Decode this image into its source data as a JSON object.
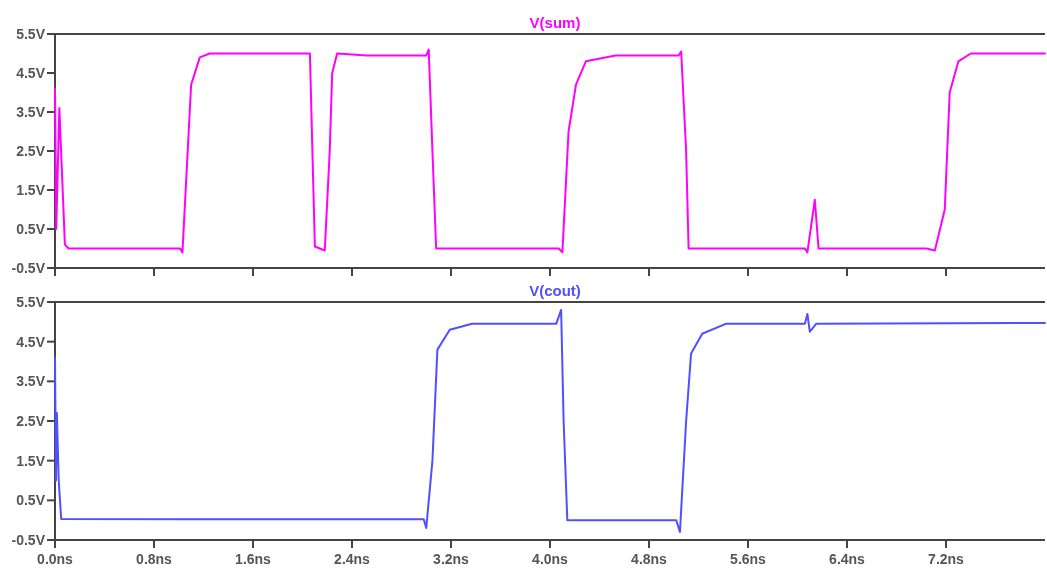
{
  "chart_data": [
    {
      "type": "line",
      "legend": "top",
      "grid": false,
      "tick_labels": "y",
      "marker": "none",
      "line_style": "solid",
      "xlim": [
        0,
        8.0
      ],
      "ylim": [
        -0.5,
        5.5
      ],
      "yticks": [
        {
          "value": -0.5,
          "label": "-0.5V"
        },
        {
          "value": 0.5,
          "label": "0.5V"
        },
        {
          "value": 1.5,
          "label": "1.5V"
        },
        {
          "value": 2.5,
          "label": "2.5V"
        },
        {
          "value": 3.5,
          "label": "3.5V"
        },
        {
          "value": 4.5,
          "label": "4.5V"
        },
        {
          "value": 5.5,
          "label": "5.5V"
        }
      ],
      "xticks": [
        {
          "value": 0,
          "label": null
        },
        {
          "value": 0.8,
          "label": null
        },
        {
          "value": 1.6,
          "label": null
        },
        {
          "value": 2.4,
          "label": null
        },
        {
          "value": 3.2,
          "label": null
        },
        {
          "value": 4.0,
          "label": null
        },
        {
          "value": 4.8,
          "label": null
        },
        {
          "value": 5.6,
          "label": null
        },
        {
          "value": 6.4,
          "label": null
        },
        {
          "value": 7.2,
          "label": null
        }
      ],
      "series": [
        {
          "name": "V(sum)",
          "color": "#ff00ff",
          "x": [
            0,
            0.01,
            0.035,
            0.08,
            0.11,
            1.01,
            1.03,
            1.1,
            1.17,
            1.25,
            2.06,
            2.08,
            2.1,
            2.18,
            2.22,
            2.24,
            2.28,
            2.52,
            3.0,
            3.02,
            3.05,
            3.08,
            4.07,
            4.1,
            4.15,
            4.21,
            4.29,
            4.53,
            5.04,
            5.06,
            5.1,
            5.12,
            6.06,
            6.08,
            6.14,
            6.17,
            7.04,
            7.11,
            7.19,
            7.23,
            7.3,
            7.4,
            8.0
          ],
          "values": [
            4.1,
            0.5,
            3.6,
            0.1,
            0.0,
            0.0,
            -0.1,
            4.2,
            4.9,
            5.0,
            5.0,
            2.5,
            0.05,
            -0.05,
            2.5,
            4.5,
            5.0,
            4.95,
            4.95,
            5.1,
            2.5,
            0.0,
            0.0,
            -0.1,
            3.0,
            4.2,
            4.8,
            4.95,
            4.95,
            5.05,
            2.5,
            0.0,
            0.0,
            -0.1,
            1.25,
            0.0,
            0.0,
            -0.05,
            1.0,
            4.0,
            4.8,
            5.0,
            5.0
          ]
        }
      ]
    },
    {
      "type": "line",
      "legend": "top",
      "grid": false,
      "marker": "none",
      "line_style": "solid",
      "xlim": [
        0,
        8.0
      ],
      "ylim": [
        -0.5,
        5.5
      ],
      "yticks": [
        {
          "value": -0.5,
          "label": "-0.5V"
        },
        {
          "value": 0.5,
          "label": "0.5V"
        },
        {
          "value": 1.5,
          "label": "1.5V"
        },
        {
          "value": 2.5,
          "label": "2.5V"
        },
        {
          "value": 3.5,
          "label": "3.5V"
        },
        {
          "value": 4.5,
          "label": "4.5V"
        },
        {
          "value": 5.5,
          "label": "5.5V"
        }
      ],
      "xticks": [
        {
          "value": 0,
          "label": "0.0ns"
        },
        {
          "value": 0.8,
          "label": "0.8ns"
        },
        {
          "value": 1.6,
          "label": "1.6ns"
        },
        {
          "value": 2.4,
          "label": "2.4ns"
        },
        {
          "value": 3.2,
          "label": "3.2ns"
        },
        {
          "value": 4.0,
          "label": "4.0ns"
        },
        {
          "value": 4.8,
          "label": "4.8ns"
        },
        {
          "value": 5.6,
          "label": "5.6ns"
        },
        {
          "value": 6.4,
          "label": "6.4ns"
        },
        {
          "value": 7.2,
          "label": "7.2ns"
        }
      ],
      "series": [
        {
          "name": "V(cout)",
          "color": "#5050ff",
          "x": [
            0,
            0.008,
            0.015,
            0.03,
            0.05,
            1.0,
            2.0,
            2.98,
            3.0,
            3.05,
            3.09,
            3.19,
            3.37,
            4.05,
            4.09,
            4.11,
            4.14,
            5.02,
            5.05,
            5.1,
            5.14,
            5.23,
            5.42,
            6.06,
            6.08,
            6.1,
            6.15,
            8.0
          ],
          "values": [
            4.1,
            1.0,
            2.7,
            1.0,
            0.03,
            0.02,
            0.02,
            0.02,
            -0.2,
            1.5,
            4.3,
            4.8,
            4.95,
            4.95,
            5.3,
            2.5,
            0.0,
            0.0,
            -0.3,
            2.5,
            4.2,
            4.7,
            4.95,
            4.95,
            5.2,
            4.75,
            4.95,
            4.97
          ]
        }
      ]
    }
  ]
}
